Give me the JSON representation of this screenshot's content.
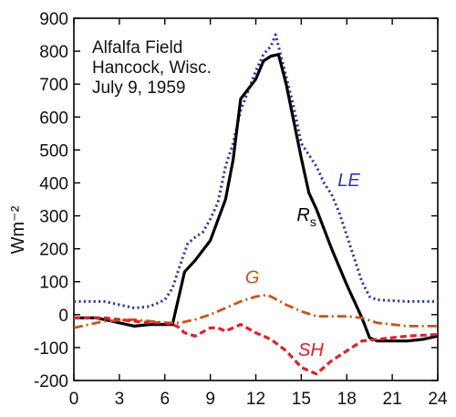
{
  "chart_data": {
    "type": "line",
    "xlabel": "",
    "ylabel": "Wm⁻²",
    "xlim": [
      0,
      24
    ],
    "ylim": [
      -200,
      900
    ],
    "xticks": [
      0,
      3,
      6,
      9,
      12,
      15,
      18,
      21,
      24
    ],
    "yticks": [
      -200,
      -100,
      0,
      100,
      200,
      300,
      400,
      500,
      600,
      700,
      800,
      900
    ],
    "grid": false,
    "annotation": [
      "Alfalfa Field",
      "Hancock, Wisc.",
      "July 9, 1959"
    ],
    "series": [
      {
        "name": "LE",
        "label_italic": "LE",
        "color": "#2b3aa8",
        "style": "dotted",
        "label_pos": [
          17.4,
          390
        ],
        "points": [
          [
            0,
            40
          ],
          [
            2,
            40
          ],
          [
            3,
            30
          ],
          [
            4,
            20
          ],
          [
            5,
            25
          ],
          [
            6,
            45
          ],
          [
            6.5,
            80
          ],
          [
            7,
            150
          ],
          [
            7.5,
            215
          ],
          [
            8,
            235
          ],
          [
            8.5,
            250
          ],
          [
            9,
            290
          ],
          [
            9.5,
            340
          ],
          [
            10,
            450
          ],
          [
            10.5,
            520
          ],
          [
            11,
            620
          ],
          [
            11.5,
            680
          ],
          [
            12,
            740
          ],
          [
            12.5,
            790
          ],
          [
            13,
            815
          ],
          [
            13.3,
            850
          ],
          [
            13.8,
            760
          ],
          [
            14.5,
            630
          ],
          [
            15,
            520
          ],
          [
            16,
            450
          ],
          [
            16.5,
            400
          ],
          [
            17,
            365
          ],
          [
            17.5,
            310
          ],
          [
            18,
            240
          ],
          [
            18.5,
            170
          ],
          [
            19,
            100
          ],
          [
            19.5,
            55
          ],
          [
            20,
            45
          ],
          [
            22,
            40
          ],
          [
            24,
            40
          ]
        ]
      },
      {
        "name": "Rs",
        "label_main": "R",
        "label_sub": "s",
        "color": "#000000",
        "style": "solid",
        "label_pos": [
          14.7,
          285
        ],
        "points": [
          [
            0,
            -10
          ],
          [
            1.5,
            -10
          ],
          [
            3,
            -25
          ],
          [
            4,
            -35
          ],
          [
            5,
            -30
          ],
          [
            6,
            -30
          ],
          [
            6.5,
            -30
          ],
          [
            7.3,
            130
          ],
          [
            8,
            165
          ],
          [
            9,
            225
          ],
          [
            10,
            350
          ],
          [
            10.5,
            470
          ],
          [
            11,
            655
          ],
          [
            12,
            715
          ],
          [
            12.5,
            770
          ],
          [
            13,
            785
          ],
          [
            13.5,
            790
          ],
          [
            14,
            700
          ],
          [
            15,
            475
          ],
          [
            15.5,
            370
          ],
          [
            16,
            320
          ],
          [
            17,
            200
          ],
          [
            18,
            90
          ],
          [
            19,
            -10
          ],
          [
            19.5,
            -70
          ],
          [
            20,
            -80
          ],
          [
            22,
            -80
          ],
          [
            23,
            -75
          ],
          [
            24,
            -65
          ]
        ]
      },
      {
        "name": "G",
        "label_italic": "G",
        "color": "#c8541a",
        "style": "dashdot",
        "label_pos": [
          11.3,
          95
        ],
        "points": [
          [
            0,
            -40
          ],
          [
            2,
            -20
          ],
          [
            4,
            -15
          ],
          [
            6,
            -25
          ],
          [
            7,
            -25
          ],
          [
            8,
            -15
          ],
          [
            9,
            0
          ],
          [
            10,
            20
          ],
          [
            11,
            40
          ],
          [
            12,
            55
          ],
          [
            12.7,
            60
          ],
          [
            13,
            55
          ],
          [
            14,
            30
          ],
          [
            15,
            10
          ],
          [
            16,
            -5
          ],
          [
            18,
            -5
          ],
          [
            19,
            -10
          ],
          [
            20,
            -25
          ],
          [
            22,
            -35
          ],
          [
            24,
            -35
          ]
        ]
      },
      {
        "name": "SH",
        "label_italic": "SH",
        "color": "#e0202a",
        "style": "dashed",
        "label_pos": [
          14.8,
          -125
        ],
        "points": [
          [
            0,
            -10
          ],
          [
            2,
            -10
          ],
          [
            4,
            -20
          ],
          [
            5,
            -25
          ],
          [
            6,
            -25
          ],
          [
            6.8,
            -35
          ],
          [
            7.3,
            -55
          ],
          [
            8,
            -65
          ],
          [
            9,
            -40
          ],
          [
            9.5,
            -40
          ],
          [
            10,
            -50
          ],
          [
            11,
            -30
          ],
          [
            12,
            -55
          ],
          [
            13,
            -75
          ],
          [
            14,
            -110
          ],
          [
            15,
            -160
          ],
          [
            16,
            -180
          ],
          [
            17,
            -140
          ],
          [
            18,
            -110
          ],
          [
            19,
            -80
          ],
          [
            20,
            -75
          ],
          [
            22,
            -65
          ],
          [
            24,
            -60
          ]
        ]
      }
    ]
  }
}
